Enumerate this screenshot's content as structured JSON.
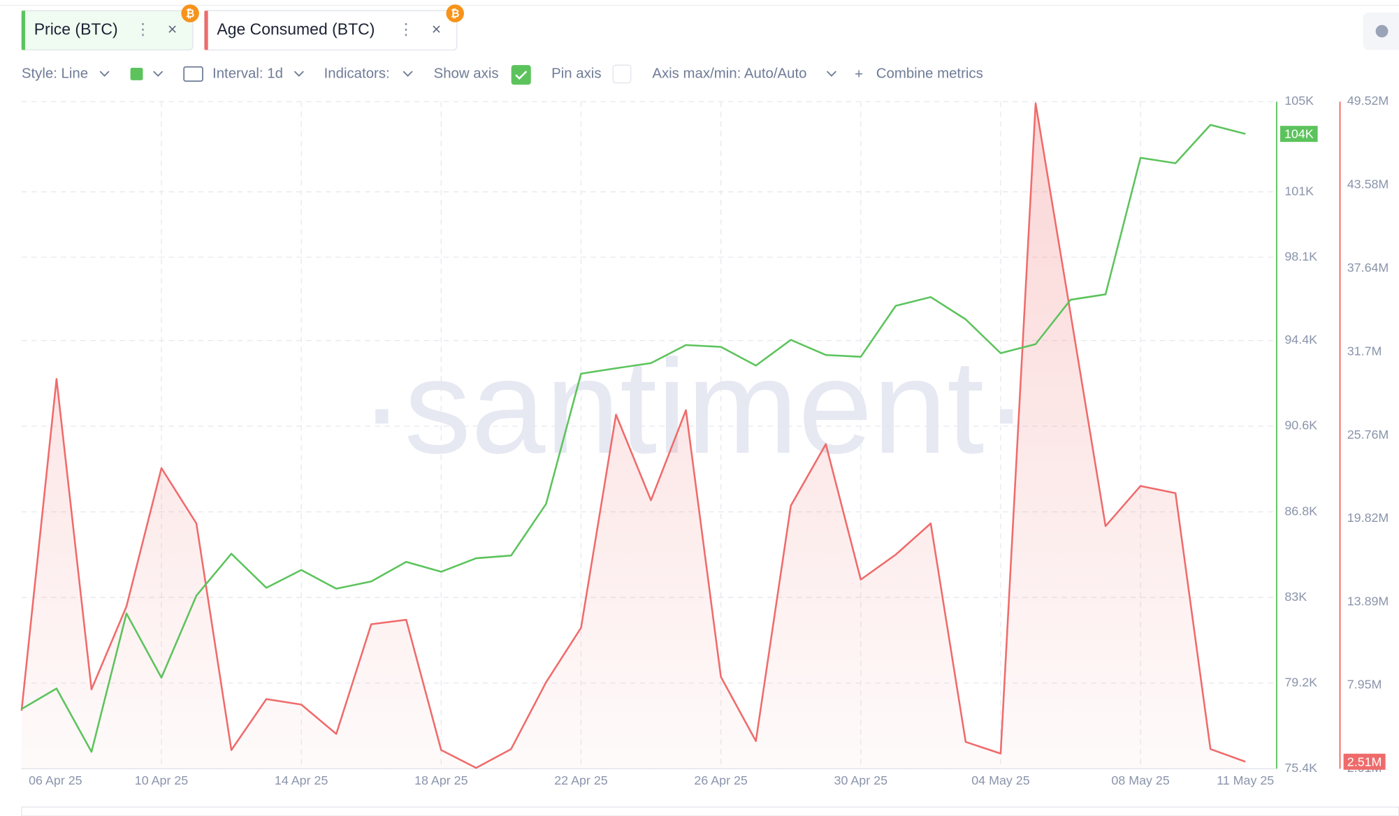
{
  "tabs": [
    {
      "label": "Price (BTC)"
    },
    {
      "label": "Age Consumed (BTC)"
    }
  ],
  "toolbar": {
    "style": "Style: Line",
    "interval": "Interval: 1d",
    "indicators": "Indicators:",
    "show_axis": "Show axis",
    "pin_axis": "Pin axis",
    "axis_range": "Axis max/min: Auto/Auto",
    "combine": "Combine metrics"
  },
  "watermark": "·santiment·",
  "chart_data": {
    "type": "line",
    "grid": true,
    "categories": [
      "06 Apr 25",
      null,
      null,
      null,
      "10 Apr 25",
      null,
      null,
      null,
      "14 Apr 25",
      null,
      null,
      null,
      "18 Apr 25",
      null,
      null,
      null,
      "22 Apr 25",
      null,
      null,
      null,
      "26 Apr 25",
      null,
      null,
      null,
      "30 Apr 25",
      null,
      null,
      null,
      "04 May 25",
      null,
      null,
      null,
      "08 May 25",
      null,
      null,
      "11 May 25"
    ],
    "ylim": [
      75.4,
      105
    ],
    "yticks": [
      {
        "value": 105,
        "label": "105K"
      },
      {
        "value": 101,
        "label": "101K"
      },
      {
        "value": 98.1,
        "label": "98.1K"
      },
      {
        "value": 94.4,
        "label": "94.4K"
      },
      {
        "value": 90.6,
        "label": "90.6K"
      },
      {
        "value": 86.8,
        "label": "86.8K"
      },
      {
        "value": 83,
        "label": "83K"
      },
      {
        "value": 79.2,
        "label": "79.2K"
      },
      {
        "value": 75.4,
        "label": "75.4K"
      }
    ],
    "y2lim": [
      2.01,
      49.52
    ],
    "y2ticks": [
      {
        "value": 49.52,
        "label": "49.52M"
      },
      {
        "value": 43.58,
        "label": "43.58M"
      },
      {
        "value": 37.64,
        "label": "37.64M"
      },
      {
        "value": 31.7,
        "label": "31.7M"
      },
      {
        "value": 25.76,
        "label": "25.76M"
      },
      {
        "value": 19.82,
        "label": "19.82M"
      },
      {
        "value": 13.89,
        "label": "13.89M"
      },
      {
        "value": 7.95,
        "label": "7.95M"
      },
      {
        "value": 2.01,
        "label": "2.01M"
      }
    ],
    "series": [
      {
        "name": "Age Consumed (BTC)",
        "color": "#ef6b6b",
        "axis": "y2",
        "area": true,
        "values": [
          6.14,
          29.77,
          7.66,
          13.57,
          23.42,
          19.48,
          3.34,
          6.97,
          6.58,
          4.49,
          12.3,
          12.62,
          3.34,
          2.07,
          3.41,
          8.17,
          12.05,
          27.23,
          21.13,
          27.55,
          8.55,
          3.98,
          20.75,
          25.13,
          15.48,
          17.26,
          19.48,
          3.92,
          3.09,
          49.4,
          34.41,
          19.29,
          22.15,
          21.64,
          3.41,
          2.51
        ],
        "value_labels": [
          null,
          null,
          null,
          null,
          null,
          null,
          null,
          null,
          null,
          null,
          null,
          null,
          null,
          null,
          null,
          null,
          null,
          null,
          null,
          null,
          null,
          null,
          null,
          null,
          null,
          null,
          null,
          null,
          null,
          null,
          null,
          null,
          null,
          null,
          null,
          "2.51M"
        ]
      },
      {
        "name": "Price (BTC)",
        "color": "#5cc35c",
        "axis": "y",
        "values": [
          78.05,
          78.96,
          76.15,
          82.29,
          79.44,
          83.08,
          84.94,
          83.43,
          84.22,
          83.39,
          83.71,
          84.58,
          84.14,
          84.74,
          84.86,
          87.15,
          92.93,
          93.17,
          93.4,
          94.2,
          94.12,
          93.29,
          94.43,
          93.76,
          93.68,
          95.94,
          96.33,
          95.34,
          93.84,
          94.24,
          96.21,
          96.45,
          102.51,
          102.27,
          103.97,
          103.57
        ],
        "value_labels": [
          null,
          null,
          null,
          null,
          null,
          null,
          null,
          null,
          null,
          null,
          null,
          null,
          null,
          null,
          null,
          null,
          null,
          null,
          null,
          null,
          null,
          null,
          null,
          null,
          null,
          null,
          null,
          null,
          null,
          null,
          null,
          null,
          null,
          null,
          null,
          "104K"
        ]
      }
    ]
  }
}
